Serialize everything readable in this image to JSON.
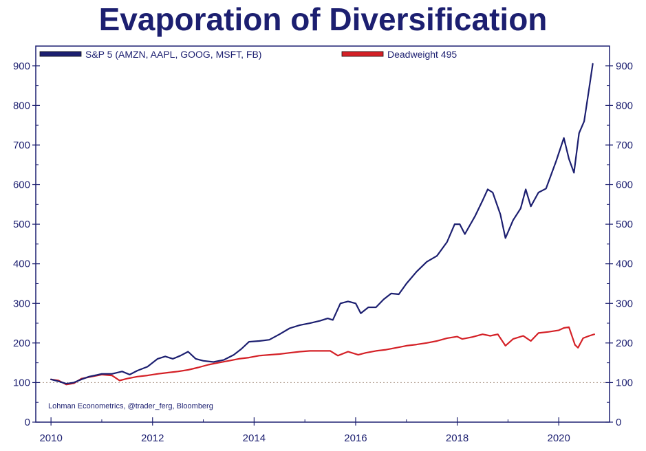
{
  "chart_data": {
    "type": "line",
    "title": "Evaporation of Diversification",
    "xlabel": "",
    "ylabel": "",
    "xlim": [
      2009.7,
      2021.0
    ],
    "ylim": [
      0,
      950
    ],
    "x_ticks": [
      "2010",
      "2012",
      "2014",
      "2016",
      "2018",
      "2020"
    ],
    "y_ticks": [
      "0",
      "100",
      "200",
      "300",
      "400",
      "500",
      "600",
      "700",
      "800",
      "900"
    ],
    "reference_line": 100,
    "source": "Lohman Econometrics, @trader_ferg, Bloomberg",
    "legend_position": "top-left",
    "series": [
      {
        "name": "S&P 5 (AMZN, AAPL, GOOG, MSFT, FB)",
        "color": "#1c1f70",
        "points": [
          [
            2010.0,
            108
          ],
          [
            2010.15,
            103
          ],
          [
            2010.3,
            97
          ],
          [
            2010.45,
            100
          ],
          [
            2010.6,
            108
          ],
          [
            2010.75,
            115
          ],
          [
            2010.9,
            119
          ],
          [
            2011.0,
            122
          ],
          [
            2011.2,
            122
          ],
          [
            2011.4,
            128
          ],
          [
            2011.55,
            120
          ],
          [
            2011.7,
            130
          ],
          [
            2011.9,
            140
          ],
          [
            2012.1,
            160
          ],
          [
            2012.25,
            166
          ],
          [
            2012.4,
            160
          ],
          [
            2012.55,
            168
          ],
          [
            2012.7,
            178
          ],
          [
            2012.85,
            160
          ],
          [
            2013.0,
            155
          ],
          [
            2013.2,
            152
          ],
          [
            2013.4,
            157
          ],
          [
            2013.6,
            170
          ],
          [
            2013.75,
            185
          ],
          [
            2013.9,
            203
          ],
          [
            2014.1,
            205
          ],
          [
            2014.3,
            208
          ],
          [
            2014.5,
            222
          ],
          [
            2014.7,
            237
          ],
          [
            2014.9,
            245
          ],
          [
            2015.1,
            250
          ],
          [
            2015.3,
            256
          ],
          [
            2015.45,
            262
          ],
          [
            2015.55,
            258
          ],
          [
            2015.7,
            300
          ],
          [
            2015.85,
            305
          ],
          [
            2016.0,
            300
          ],
          [
            2016.1,
            275
          ],
          [
            2016.25,
            290
          ],
          [
            2016.4,
            290
          ],
          [
            2016.55,
            310
          ],
          [
            2016.7,
            325
          ],
          [
            2016.85,
            323
          ],
          [
            2017.0,
            350
          ],
          [
            2017.2,
            380
          ],
          [
            2017.4,
            405
          ],
          [
            2017.6,
            420
          ],
          [
            2017.8,
            455
          ],
          [
            2017.95,
            500
          ],
          [
            2018.05,
            500
          ],
          [
            2018.15,
            475
          ],
          [
            2018.35,
            520
          ],
          [
            2018.5,
            560
          ],
          [
            2018.6,
            588
          ],
          [
            2018.7,
            580
          ],
          [
            2018.85,
            525
          ],
          [
            2018.95,
            465
          ],
          [
            2019.1,
            510
          ],
          [
            2019.25,
            540
          ],
          [
            2019.35,
            588
          ],
          [
            2019.45,
            545
          ],
          [
            2019.6,
            580
          ],
          [
            2019.75,
            590
          ],
          [
            2019.95,
            660
          ],
          [
            2020.1,
            718
          ],
          [
            2020.2,
            665
          ],
          [
            2020.3,
            630
          ],
          [
            2020.4,
            730
          ],
          [
            2020.5,
            760
          ],
          [
            2020.6,
            845
          ],
          [
            2020.67,
            905
          ]
        ]
      },
      {
        "name": "Deadweight 495",
        "color": "#d42026",
        "points": [
          [
            2010.0,
            108
          ],
          [
            2010.15,
            105
          ],
          [
            2010.3,
            95
          ],
          [
            2010.45,
            98
          ],
          [
            2010.6,
            110
          ],
          [
            2010.8,
            115
          ],
          [
            2011.0,
            120
          ],
          [
            2011.2,
            118
          ],
          [
            2011.35,
            105
          ],
          [
            2011.5,
            110
          ],
          [
            2011.7,
            115
          ],
          [
            2011.9,
            118
          ],
          [
            2012.1,
            122
          ],
          [
            2012.3,
            125
          ],
          [
            2012.5,
            128
          ],
          [
            2012.7,
            132
          ],
          [
            2012.9,
            138
          ],
          [
            2013.1,
            145
          ],
          [
            2013.3,
            150
          ],
          [
            2013.5,
            155
          ],
          [
            2013.7,
            160
          ],
          [
            2013.9,
            163
          ],
          [
            2014.1,
            168
          ],
          [
            2014.3,
            170
          ],
          [
            2014.5,
            172
          ],
          [
            2014.7,
            175
          ],
          [
            2014.9,
            178
          ],
          [
            2015.1,
            180
          ],
          [
            2015.3,
            180
          ],
          [
            2015.5,
            180
          ],
          [
            2015.65,
            168
          ],
          [
            2015.85,
            178
          ],
          [
            2016.05,
            170
          ],
          [
            2016.2,
            175
          ],
          [
            2016.4,
            180
          ],
          [
            2016.6,
            183
          ],
          [
            2016.8,
            188
          ],
          [
            2017.0,
            193
          ],
          [
            2017.2,
            196
          ],
          [
            2017.4,
            200
          ],
          [
            2017.6,
            205
          ],
          [
            2017.8,
            212
          ],
          [
            2018.0,
            216
          ],
          [
            2018.1,
            210
          ],
          [
            2018.3,
            215
          ],
          [
            2018.5,
            222
          ],
          [
            2018.65,
            218
          ],
          [
            2018.8,
            222
          ],
          [
            2018.95,
            193
          ],
          [
            2019.1,
            210
          ],
          [
            2019.3,
            218
          ],
          [
            2019.45,
            205
          ],
          [
            2019.6,
            225
          ],
          [
            2019.8,
            228
          ],
          [
            2020.0,
            232
          ],
          [
            2020.1,
            238
          ],
          [
            2020.2,
            240
          ],
          [
            2020.32,
            195
          ],
          [
            2020.38,
            188
          ],
          [
            2020.48,
            212
          ],
          [
            2020.6,
            218
          ],
          [
            2020.7,
            222
          ]
        ]
      }
    ]
  }
}
